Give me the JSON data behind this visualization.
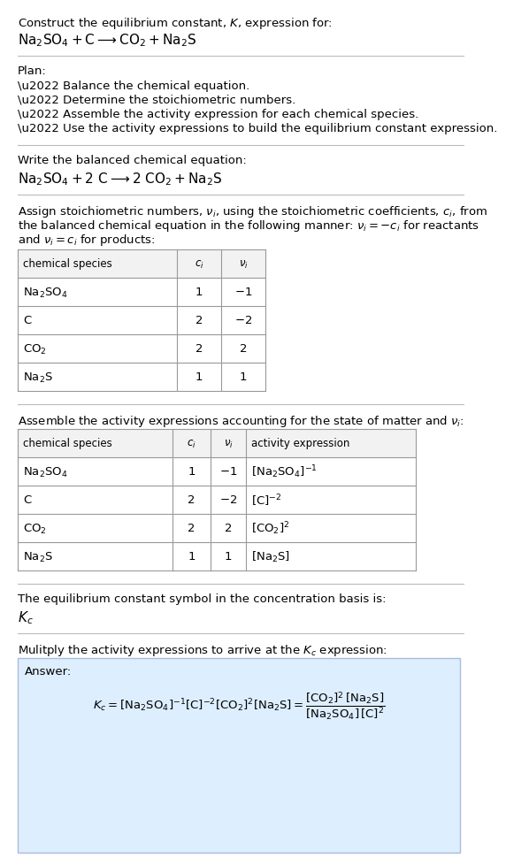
{
  "title_line1": "Construct the equilibrium constant, $K$, expression for:",
  "title_line2": "$\\mathrm{Na_2SO_4 + C \\longrightarrow CO_2 + Na_2S}$",
  "plan_header": "Plan:",
  "plan_items": [
    "\\u2022 Balance the chemical equation.",
    "\\u2022 Determine the stoichiometric numbers.",
    "\\u2022 Assemble the activity expression for each chemical species.",
    "\\u2022 Use the activity expressions to build the equilibrium constant expression."
  ],
  "balanced_header": "Write the balanced chemical equation:",
  "balanced_eq": "$\\mathrm{Na_2SO_4 + 2\\ C \\longrightarrow 2\\ CO_2 + Na_2S}$",
  "stoich_text": [
    "Assign stoichiometric numbers, $\\nu_i$, using the stoichiometric coefficients, $c_i$, from",
    "the balanced chemical equation in the following manner: $\\nu_i = -c_i$ for reactants",
    "and $\\nu_i = c_i$ for products:"
  ],
  "table1_headers": [
    "chemical species",
    "$c_i$",
    "$\\nu_i$"
  ],
  "table1_rows": [
    [
      "$\\mathrm{Na_2SO_4}$",
      "1",
      "$-1$"
    ],
    [
      "C",
      "2",
      "$-2$"
    ],
    [
      "$\\mathrm{CO_2}$",
      "2",
      "2"
    ],
    [
      "$\\mathrm{Na_2S}$",
      "1",
      "1"
    ]
  ],
  "assemble_text": "Assemble the activity expressions accounting for the state of matter and $\\nu_i$:",
  "table2_headers": [
    "chemical species",
    "$c_i$",
    "$\\nu_i$",
    "activity expression"
  ],
  "table2_rows": [
    [
      "$\\mathrm{Na_2SO_4}$",
      "1",
      "$-1$",
      "$[\\mathrm{Na_2SO_4}]^{-1}$"
    ],
    [
      "C",
      "2",
      "$-2$",
      "$[\\mathrm{C}]^{-2}$"
    ],
    [
      "$\\mathrm{CO_2}$",
      "2",
      "2",
      "$[\\mathrm{CO_2}]^{2}$"
    ],
    [
      "$\\mathrm{Na_2S}$",
      "1",
      "1",
      "$[\\mathrm{Na_2S}]$"
    ]
  ],
  "kc_text": "The equilibrium constant symbol in the concentration basis is:",
  "kc_symbol": "$K_c$",
  "multiply_text": "Mulitply the activity expressions to arrive at the $K_c$ expression:",
  "answer_label": "Answer:",
  "bg_color": "#ffffff",
  "table_border_color": "#999999",
  "table_header_bg": "#f2f2f2",
  "answer_box_color": "#ddeeff",
  "answer_box_border": "#aabbdd",
  "text_color": "#000000",
  "separator_color": "#bbbbbb",
  "font_size": 9.5,
  "small_font_size": 8.5,
  "large_font_size": 11
}
